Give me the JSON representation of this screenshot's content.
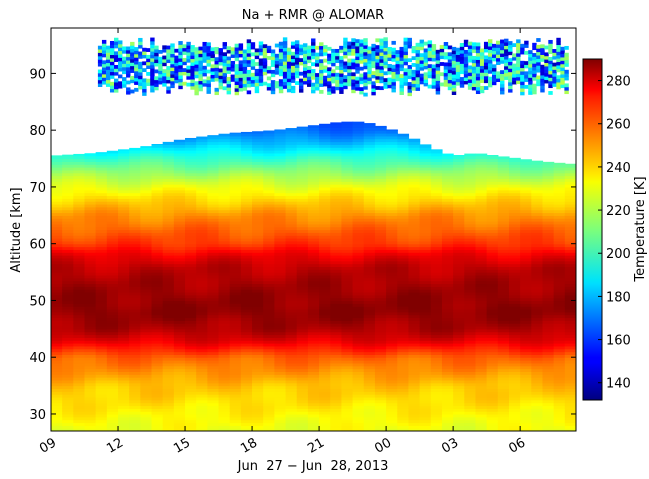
{
  "chart_data": {
    "type": "heatmap",
    "title": "Na + RMR @ ALOMAR",
    "xlabel": "Jun  27 − Jun  28, 2013",
    "ylabel": "Altitude [km]",
    "x_ticks": [
      "09",
      "12",
      "15",
      "18",
      "21",
      "00",
      "03",
      "06"
    ],
    "x_tick_hours": [
      9,
      12,
      15,
      18,
      21,
      24,
      27,
      30
    ],
    "xlim_hours": [
      9,
      32.5
    ],
    "ylim": [
      27,
      98
    ],
    "y_ticks": [
      30,
      40,
      50,
      60,
      70,
      80,
      90
    ],
    "colorbar": {
      "label": "Temperature [K]",
      "range": [
        132,
        290
      ],
      "ticks": [
        140,
        160,
        180,
        200,
        220,
        240,
        260,
        280
      ],
      "colormap": "jet"
    },
    "temperature_profile": {
      "altitude_km": [
        27,
        30,
        35,
        40,
        43,
        45,
        48,
        50,
        53,
        56,
        58,
        60,
        65,
        70,
        72,
        75,
        78,
        80,
        82
      ],
      "temperature_K": [
        228,
        232,
        240,
        255,
        275,
        283,
        288,
        287,
        284,
        280,
        273,
        262,
        248,
        228,
        218,
        200,
        180,
        168,
        160
      ]
    },
    "rmr_top_altitude_km": {
      "hours": [
        9,
        11,
        13,
        15,
        17,
        19,
        20,
        21,
        22,
        23,
        24,
        25,
        26,
        27,
        28,
        29,
        30,
        31,
        32.5
      ],
      "values": [
        75.5,
        76,
        77,
        78.5,
        79.5,
        80,
        80.5,
        81,
        81.5,
        81.5,
        80.5,
        79,
        77,
        75.5,
        76,
        75.5,
        75,
        74.5,
        74
      ]
    },
    "sodium_layer": {
      "hours": [
        11.1,
        32
      ],
      "altitude_km": [
        86,
        96
      ],
      "temperature_range_K": [
        140,
        220
      ]
    }
  }
}
